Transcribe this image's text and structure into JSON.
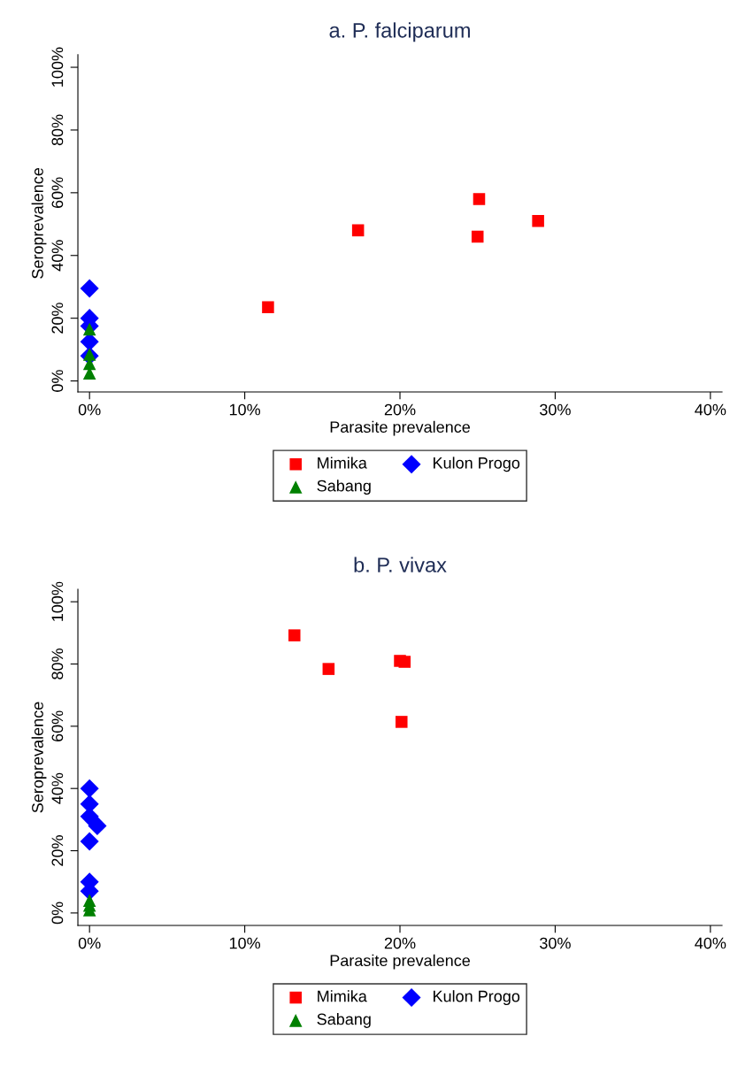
{
  "chart_data": [
    {
      "type": "scatter",
      "title": "a. P. falciparum",
      "xlabel": "Parasite prevalence",
      "ylabel": "Seroprevalence",
      "xlim": [
        -0.75,
        40.75
      ],
      "ylim": [
        -3.5,
        104
      ],
      "xticks": [
        {
          "value": 0,
          "label": "0%"
        },
        {
          "value": 10,
          "label": "10%"
        },
        {
          "value": 20,
          "label": "20%"
        },
        {
          "value": 30,
          "label": "30%"
        },
        {
          "value": 40,
          "label": "40%"
        }
      ],
      "yticks": [
        {
          "value": 0,
          "label": "0%"
        },
        {
          "value": 20,
          "label": "20%"
        },
        {
          "value": 40,
          "label": "40%"
        },
        {
          "value": 60,
          "label": "60%"
        },
        {
          "value": 80,
          "label": "80%"
        },
        {
          "value": 100,
          "label": "100%"
        }
      ],
      "grid": false,
      "legend": "bottom",
      "series": [
        {
          "name": "Mimika",
          "color": "#ff0000",
          "marker": "square",
          "x": [
            11.5,
            17.3,
            25.1,
            25.0,
            28.9
          ],
          "values": [
            23.5,
            48,
            58,
            46,
            51
          ]
        },
        {
          "name": "Kulon Progo",
          "color": "#0000ff",
          "marker": "diamond",
          "x": [
            0,
            0,
            0,
            0,
            0
          ],
          "values": [
            29.5,
            20,
            17.5,
            12.5,
            8
          ]
        },
        {
          "name": "Sabang",
          "color": "#008000",
          "marker": "triangle",
          "x": [
            0,
            0,
            0,
            0
          ],
          "values": [
            16.5,
            8.5,
            5.5,
            2.5
          ]
        }
      ]
    },
    {
      "type": "scatter",
      "title": "b. P. vivax",
      "xlabel": "Parasite prevalence",
      "ylabel": "Seroprevalence",
      "xlim": [
        -0.75,
        40.75
      ],
      "ylim": [
        -4,
        104
      ],
      "xticks": [
        {
          "value": 0,
          "label": "0%"
        },
        {
          "value": 10,
          "label": "10%"
        },
        {
          "value": 20,
          "label": "20%"
        },
        {
          "value": 30,
          "label": "30%"
        },
        {
          "value": 40,
          "label": "40%"
        }
      ],
      "yticks": [
        {
          "value": 0,
          "label": "0%"
        },
        {
          "value": 20,
          "label": "20%"
        },
        {
          "value": 40,
          "label": "40%"
        },
        {
          "value": 60,
          "label": "60%"
        },
        {
          "value": 80,
          "label": "80%"
        },
        {
          "value": 100,
          "label": "100%"
        }
      ],
      "grid": false,
      "legend": "bottom",
      "series": [
        {
          "name": "Mimika",
          "color": "#ff0000",
          "marker": "square",
          "x": [
            13.2,
            15.4,
            20.0,
            20.3,
            20.1
          ],
          "values": [
            89.2,
            78.4,
            81,
            80.7,
            61.4
          ]
        },
        {
          "name": "Kulon Progo",
          "color": "#0000ff",
          "marker": "diamond",
          "x": [
            0,
            0,
            0,
            0.5,
            0,
            0,
            0
          ],
          "values": [
            40,
            35,
            31,
            28,
            23,
            10,
            7
          ]
        },
        {
          "name": "Sabang",
          "color": "#008000",
          "marker": "triangle",
          "x": [
            0,
            0,
            0
          ],
          "values": [
            4,
            2.5,
            1
          ]
        }
      ]
    }
  ]
}
